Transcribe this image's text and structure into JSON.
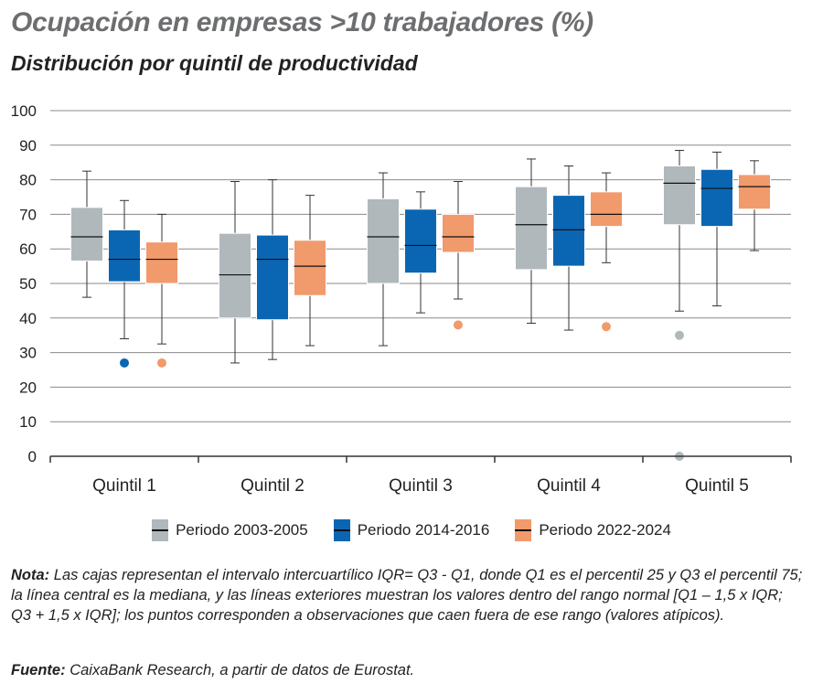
{
  "title": "Ocupación en empresas >10 trabajadores (%)",
  "subtitle": "Distribución por quintil de productividad",
  "legend": [
    {
      "label": "Periodo 2003-2005",
      "color": "#b0b8bc"
    },
    {
      "label": "Periodo 2014-2016",
      "color": "#0a66b3"
    },
    {
      "label": "Periodo 2022-2024",
      "color": "#f19a6c"
    }
  ],
  "note_label": "Nota:",
  "note_text": "Las cajas representan el intervalo intercuartílico IQR= Q3 - Q1, donde Q1 es el percentil 25 y Q3 el percentil 75; la línea central es la mediana, y las líneas exteriores muestran los valores dentro del rango normal [Q1 – 1,5 x IQR; Q3 + 1,5 x IQR]; los puntos corresponden a observaciones que caen fuera de ese rango (valores atípicos).",
  "source_label": "Fuente:",
  "source_text": "CaixaBank Research, a  partir de datos de Eurostat.",
  "chart_data": {
    "type": "boxplot",
    "title": "Ocupación en empresas >10 trabajadores (%)",
    "subtitle": "Distribución por quintil de productividad",
    "categories": [
      "Quintil 1",
      "Quintil 2",
      "Quintil 3",
      "Quintil 4",
      "Quintil 5"
    ],
    "ylim": [
      0,
      100
    ],
    "yticks": [
      0,
      10,
      20,
      30,
      40,
      50,
      60,
      70,
      80,
      90,
      100
    ],
    "grid": true,
    "legend_position": "bottom",
    "series": [
      {
        "name": "Periodo 2003-2005",
        "color": "#b0b8bc",
        "boxes": [
          {
            "min": 46,
            "q1": 56.5,
            "median": 63.5,
            "q3": 72,
            "max": 82.5,
            "outliers": []
          },
          {
            "min": 27,
            "q1": 40,
            "median": 52.5,
            "q3": 64.5,
            "max": 79.5,
            "outliers": []
          },
          {
            "min": 32,
            "q1": 50,
            "median": 63.5,
            "q3": 74.5,
            "max": 82,
            "outliers": []
          },
          {
            "min": 38.5,
            "q1": 54,
            "median": 67,
            "q3": 78,
            "max": 86,
            "outliers": []
          },
          {
            "min": 42,
            "q1": 67,
            "median": 79,
            "q3": 84,
            "max": 88.5,
            "outliers": [
              35,
              0
            ]
          }
        ]
      },
      {
        "name": "Periodo 2014-2016",
        "color": "#0a66b3",
        "boxes": [
          {
            "min": 34,
            "q1": 50.5,
            "median": 57,
            "q3": 65.5,
            "max": 74,
            "outliers": [
              27
            ]
          },
          {
            "min": 28,
            "q1": 39.5,
            "median": 57,
            "q3": 64,
            "max": 80,
            "outliers": []
          },
          {
            "min": 41.5,
            "q1": 53,
            "median": 61,
            "q3": 71.5,
            "max": 76.5,
            "outliers": []
          },
          {
            "min": 36.5,
            "q1": 55,
            "median": 65.5,
            "q3": 75.5,
            "max": 84,
            "outliers": []
          },
          {
            "min": 43.5,
            "q1": 66.5,
            "median": 77.5,
            "q3": 83,
            "max": 88,
            "outliers": []
          }
        ]
      },
      {
        "name": "Periodo 2022-2024",
        "color": "#f19a6c",
        "boxes": [
          {
            "min": 32.5,
            "q1": 50,
            "median": 57,
            "q3": 62,
            "max": 70,
            "outliers": [
              27
            ]
          },
          {
            "min": 32,
            "q1": 46.5,
            "median": 55,
            "q3": 62.5,
            "max": 75.5,
            "outliers": []
          },
          {
            "min": 45.5,
            "q1": 59,
            "median": 63.5,
            "q3": 70,
            "max": 79.5,
            "outliers": [
              38
            ]
          },
          {
            "min": 56,
            "q1": 66.5,
            "median": 70,
            "q3": 76.5,
            "max": 82,
            "outliers": [
              37.5
            ]
          },
          {
            "min": 59.5,
            "q1": 71.5,
            "median": 78,
            "q3": 81.5,
            "max": 85.5,
            "outliers": []
          }
        ]
      }
    ]
  }
}
